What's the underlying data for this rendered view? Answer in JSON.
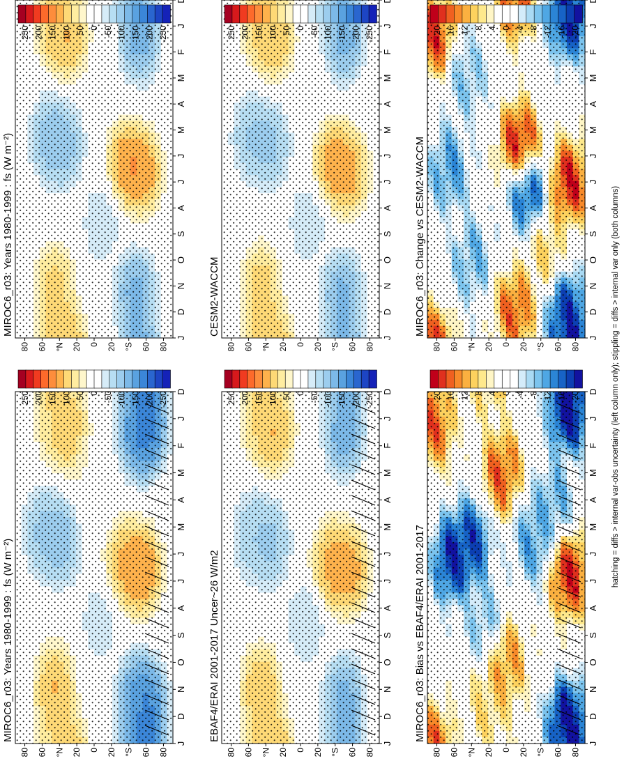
{
  "footnote": "hatching = diffs > internal var-obs uncertainty (left column only); stippling = diffs > internal var only (both columns)",
  "colormaps": {
    "main": [
      "#a50021",
      "#d7191c",
      "#f03b20",
      "#fd6a2b",
      "#fd8d3c",
      "#feb24c",
      "#fed976",
      "#ffeda0",
      "#fff7cc",
      "#ffffff",
      "#ffffff",
      "#d6ecf8",
      "#b7def3",
      "#9ccdee",
      "#7cb9e8",
      "#5aa2e0",
      "#3b86d8",
      "#2a66cf",
      "#1d45c4",
      "#1522b8"
    ],
    "diff": [
      "#c0001a",
      "#e0301e",
      "#f06020",
      "#f88a2a",
      "#fbb040",
      "#fdd25e",
      "#fee98c",
      "#fff6c6",
      "#ffffff",
      "#ffffff",
      "#ffffff",
      "#d4ecfa",
      "#a9daf4",
      "#7cc4ee",
      "#4fa7e4",
      "#2b85d6",
      "#1763c6",
      "#0c3fb3",
      "#1212a0"
    ]
  },
  "chart_data": [
    {
      "type": "heatmap",
      "title": "MIROC6_r03: Years 1980-1999 : fs (W m⁻²)",
      "x_ticks": [
        "D",
        "J",
        "F",
        "M",
        "A",
        "M",
        "J",
        "J",
        "A",
        "S",
        "O",
        "N",
        "D",
        "J"
      ],
      "y_ticks": [
        "80",
        "60",
        "°N",
        "20",
        "0",
        "20",
        "°S",
        "60",
        "80"
      ],
      "z_ticks": [
        "250",
        "200",
        "150",
        "100",
        "50",
        "0",
        "-50",
        "-100",
        "-150",
        "-200",
        "-250"
      ],
      "z_range": [
        -275,
        275
      ],
      "colormap": "main",
      "hatching": true,
      "features": [
        {
          "month": 1.0,
          "lat": 45,
          "value": 95
        },
        {
          "month": 1.4,
          "lat": 30,
          "value": 135
        },
        {
          "month": 1.5,
          "lat": -50,
          "value": -180
        },
        {
          "month": 1.4,
          "lat": -60,
          "value": -215
        },
        {
          "month": 5.2,
          "lat": 58,
          "value": -110
        },
        {
          "month": 5.5,
          "lat": 38,
          "value": -125
        },
        {
          "month": 6.4,
          "lat": -36,
          "value": 145
        },
        {
          "month": 6.6,
          "lat": -55,
          "value": 170
        },
        {
          "month": 11.0,
          "lat": 45,
          "value": 140
        },
        {
          "month": 11.3,
          "lat": -50,
          "value": -170
        },
        {
          "month": 11.6,
          "lat": -60,
          "value": -205
        },
        {
          "month": 3.2,
          "lat": 6,
          "value": 30
        },
        {
          "month": 8.5,
          "lat": -6,
          "value": -50
        }
      ]
    },
    {
      "type": "heatmap",
      "title": "MIROC6_r03: Years 1980-1999 : fs (W m⁻²)",
      "x_ticks": [
        "D",
        "J",
        "F",
        "M",
        "A",
        "M",
        "J",
        "J",
        "A",
        "S",
        "O",
        "N",
        "D",
        "J"
      ],
      "y_ticks": [
        "80",
        "60",
        "°N",
        "20",
        "0",
        "20",
        "°S",
        "60",
        "80"
      ],
      "z_ticks": [
        "250",
        "200",
        "150",
        "100",
        "50",
        "0",
        "-50",
        "-100",
        "-150",
        "-200",
        "-250"
      ],
      "z_range": [
        -275,
        275
      ],
      "colormap": "main",
      "hatching": false,
      "features": [
        {
          "month": 1.0,
          "lat": 45,
          "value": 120
        },
        {
          "month": 1.4,
          "lat": 30,
          "value": 135
        },
        {
          "month": 1.5,
          "lat": -52,
          "value": -150
        },
        {
          "month": 5.3,
          "lat": 50,
          "value": -120
        },
        {
          "month": 5.6,
          "lat": 35,
          "value": -115
        },
        {
          "month": 6.3,
          "lat": -38,
          "value": 165
        },
        {
          "month": 6.6,
          "lat": -55,
          "value": 160
        },
        {
          "month": 11.0,
          "lat": 45,
          "value": 115
        },
        {
          "month": 11.3,
          "lat": -48,
          "value": -150
        },
        {
          "month": 8.6,
          "lat": -8,
          "value": -55
        }
      ]
    },
    {
      "type": "heatmap",
      "title": "EBAF4/ERAI 2001-2017 Uncer~26 W/m2",
      "x_ticks": [
        "D",
        "J",
        "F",
        "M",
        "A",
        "M",
        "J",
        "J",
        "A",
        "S",
        "O",
        "N",
        "D",
        "J"
      ],
      "y_ticks": [
        "80",
        "60",
        "°N",
        "20",
        "0",
        "20",
        "°S",
        "60",
        "80"
      ],
      "z_ticks": [
        "250",
        "200",
        "150",
        "100",
        "50",
        "0",
        "-50",
        "-100",
        "-150",
        "-200",
        "-250"
      ],
      "z_range": [
        -275,
        275
      ],
      "colormap": "main",
      "hatching": true,
      "features": [
        {
          "month": 1.0,
          "lat": 45,
          "value": 105
        },
        {
          "month": 1.4,
          "lat": 30,
          "value": 140
        },
        {
          "month": 1.5,
          "lat": -50,
          "value": -160
        },
        {
          "month": 5.3,
          "lat": 55,
          "value": -95
        },
        {
          "month": 5.6,
          "lat": 35,
          "value": -110
        },
        {
          "month": 6.4,
          "lat": -36,
          "value": 150
        },
        {
          "month": 6.6,
          "lat": -55,
          "value": 155
        },
        {
          "month": 11.0,
          "lat": 45,
          "value": 135
        },
        {
          "month": 11.4,
          "lat": -50,
          "value": -150
        },
        {
          "month": 8.6,
          "lat": -6,
          "value": -60
        }
      ]
    },
    {
      "type": "heatmap",
      "title": "CESM2-WACCM",
      "x_ticks": [
        "D",
        "J",
        "F",
        "M",
        "A",
        "M",
        "J",
        "J",
        "A",
        "S",
        "O",
        "N",
        "D",
        "J"
      ],
      "y_ticks": [
        "80",
        "60",
        "°N",
        "20",
        "0",
        "20",
        "°S",
        "60",
        "80"
      ],
      "z_ticks": [
        "250",
        "200",
        "150",
        "100",
        "50",
        "0",
        "-50",
        "-100",
        "-150",
        "-200",
        "-250"
      ],
      "z_range": [
        -275,
        275
      ],
      "colormap": "main",
      "hatching": false,
      "features": [
        {
          "month": 1.0,
          "lat": 45,
          "value": 110
        },
        {
          "month": 1.4,
          "lat": 30,
          "value": 135
        },
        {
          "month": 1.5,
          "lat": -50,
          "value": -150
        },
        {
          "month": 5.3,
          "lat": 55,
          "value": -105
        },
        {
          "month": 5.6,
          "lat": 35,
          "value": -110
        },
        {
          "month": 6.3,
          "lat": -38,
          "value": 155
        },
        {
          "month": 6.6,
          "lat": -55,
          "value": 150
        },
        {
          "month": 11.0,
          "lat": 45,
          "value": 120
        },
        {
          "month": 11.3,
          "lat": -48,
          "value": -145
        },
        {
          "month": 8.6,
          "lat": -8,
          "value": -55
        }
      ]
    },
    {
      "type": "heatmap",
      "title": "MIROC6_r03: Bias vs EBAF4/ERAI 2001-2017",
      "x_ticks": [
        "D",
        "J",
        "F",
        "M",
        "A",
        "M",
        "J",
        "J",
        "A",
        "S",
        "O",
        "N",
        "D",
        "J"
      ],
      "y_ticks": [
        "80",
        "60",
        "°N",
        "20",
        "0",
        "20",
        "°S",
        "60",
        "80"
      ],
      "z_ticks": [
        "20",
        "16",
        "12",
        "8",
        "4",
        "0",
        "-4",
        "-8",
        "-12",
        "-16",
        "-20"
      ],
      "z_range": [
        -23,
        23
      ],
      "colormap": "diff",
      "hatching": true,
      "features": [
        {
          "month": 6.2,
          "lat": 62,
          "value": -24
        },
        {
          "month": 5.6,
          "lat": 40,
          "value": -22
        },
        {
          "month": 6.8,
          "lat": -72,
          "value": 24
        },
        {
          "month": 0.7,
          "lat": -72,
          "value": -24
        },
        {
          "month": 12.2,
          "lat": -70,
          "value": -24
        },
        {
          "month": 3.0,
          "lat": 5,
          "value": 20
        },
        {
          "month": 10.0,
          "lat": 0,
          "value": 16
        },
        {
          "month": 1.2,
          "lat": 82,
          "value": 20
        },
        {
          "month": 5.5,
          "lat": -30,
          "value": -14
        },
        {
          "month": 8.5,
          "lat": 25,
          "value": -10
        },
        {
          "month": 4.0,
          "lat": -55,
          "value": -12
        },
        {
          "month": 11.5,
          "lat": 20,
          "value": 10
        }
      ]
    },
    {
      "type": "heatmap",
      "title": "MIROC6_r03: Change vs CESM2-WACCM",
      "x_ticks": [
        "D",
        "J",
        "F",
        "M",
        "A",
        "M",
        "J",
        "J",
        "A",
        "S",
        "O",
        "N",
        "D",
        "J"
      ],
      "y_ticks": [
        "80",
        "60",
        "°N",
        "20",
        "0",
        "20",
        "°S",
        "60",
        "80"
      ],
      "z_ticks": [
        "20",
        "16",
        "12",
        "8",
        "4",
        "0",
        "-4",
        "-8",
        "-12",
        "-16",
        "-20"
      ],
      "z_range": [
        -23,
        23
      ],
      "colormap": "diff",
      "hatching": false,
      "features": [
        {
          "month": 5.5,
          "lat": -15,
          "value": 24
        },
        {
          "month": 7.5,
          "lat": -25,
          "value": -20
        },
        {
          "month": 7.0,
          "lat": -72,
          "value": 24
        },
        {
          "month": 0.7,
          "lat": -72,
          "value": -24
        },
        {
          "month": 12.0,
          "lat": -70,
          "value": -20
        },
        {
          "month": 12.0,
          "lat": -10,
          "value": 20
        },
        {
          "month": 1.4,
          "lat": 82,
          "value": 22
        },
        {
          "month": 6.5,
          "lat": 65,
          "value": -15
        },
        {
          "month": 3.0,
          "lat": 45,
          "value": -10
        },
        {
          "month": 10.0,
          "lat": 40,
          "value": -12
        },
        {
          "month": 9.5,
          "lat": -45,
          "value": 10
        }
      ]
    }
  ]
}
